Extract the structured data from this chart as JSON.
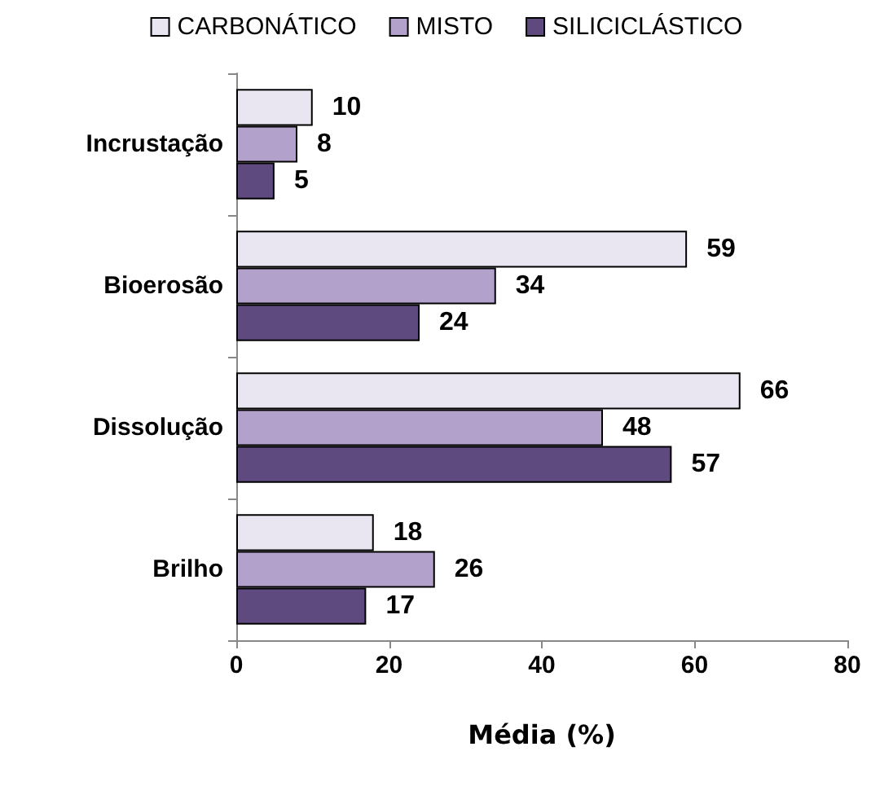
{
  "chart_data": {
    "type": "bar",
    "orientation": "horizontal",
    "xlabel": "Média (%)",
    "categories": [
      "Incrustação",
      "Bioerosão",
      "Dissolução",
      "Brilho"
    ],
    "series": [
      {
        "name": "CARBONÁTICO",
        "color": "#e9e5f1",
        "values": [
          10,
          59,
          66,
          18
        ]
      },
      {
        "name": "MISTO",
        "color": "#b2a1cb",
        "values": [
          8,
          34,
          48,
          26
        ]
      },
      {
        "name": "SILICICLÁSTICO",
        "color": "#5f4a80",
        "values": [
          5,
          24,
          57,
          17
        ]
      }
    ],
    "xlim": [
      0,
      80
    ],
    "xticks": [
      0,
      20,
      40,
      60,
      80
    ],
    "grid": false,
    "legend": "top",
    "data_labels": true
  }
}
